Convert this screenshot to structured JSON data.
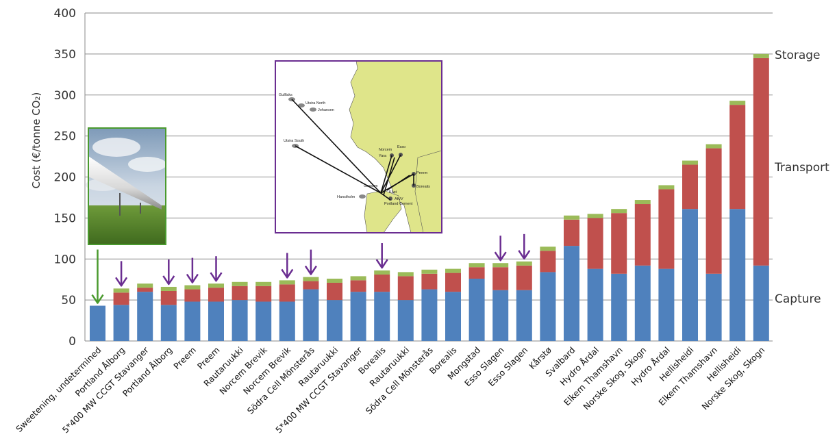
{
  "chart_data": {
    "type": "bar",
    "stacked": true,
    "ylabel": "Cost (€/tonne CO₂)",
    "ylim": [
      0,
      400
    ],
    "yticks": [
      0,
      50,
      100,
      150,
      200,
      250,
      300,
      350,
      400
    ],
    "grid": true,
    "categories": [
      "Sweetening, undetermined",
      "Portland Ålborg",
      "5*400 MW CCGT Stavanger",
      "Portland Ålborg",
      "Preem",
      "Preem",
      "Rautaruukki",
      "Norcem Brevik",
      "Norcem Brevik",
      "Södra Cell Mönsterås",
      "Rautaruukki",
      "5*400 MW CCGT Stavanger",
      "Borealis",
      "Rautaruukki",
      "Södra Cell Mönsterås",
      "Borealis",
      "Mongstad",
      "Esso Slagen",
      "Esso Slagen",
      "Kårstø",
      "Svalbard",
      "Hydro Årdal",
      "Elkem Thamshavn",
      "Norske Skog, Skogn",
      "Hydro Årdal",
      "Hellisheidi",
      "Elkem Thamshavn",
      "Hellisheidi",
      "Norske Skog, Skogn"
    ],
    "series": [
      {
        "name": "Capture",
        "color": "#4f81bd",
        "values": [
          43,
          44,
          60,
          44,
          48,
          48,
          50,
          48,
          48,
          63,
          50,
          60,
          60,
          50,
          63,
          60,
          76,
          62,
          62,
          84,
          116,
          88,
          82,
          92,
          88,
          161,
          82,
          161,
          92
        ]
      },
      {
        "name": "Transport",
        "color": "#c0504d",
        "values": [
          0,
          15,
          5,
          17,
          15,
          17,
          17,
          19,
          21,
          10,
          21,
          14,
          21,
          29,
          19,
          23,
          14,
          28,
          30,
          26,
          32,
          62,
          74,
          75,
          97,
          54,
          153,
          127,
          253
        ]
      },
      {
        "name": "Storage",
        "color": "#9bbb59",
        "values": [
          0,
          5,
          5,
          5,
          5,
          5,
          5,
          5,
          5,
          5,
          5,
          5,
          5,
          5,
          5,
          5,
          5,
          5,
          5,
          5,
          5,
          5,
          5,
          5,
          5,
          5,
          5,
          5,
          5
        ]
      }
    ],
    "highlight_arrows": [
      0,
      1,
      3,
      4,
      5,
      8,
      9,
      12,
      17,
      18
    ],
    "highlight_arrow_colors": {
      "first": "#4a9a2e",
      "other": "#6a2d91"
    }
  },
  "inset_map": {
    "labels": [
      "Gullfaks",
      "Utsira North",
      "Johansen",
      "Utsira South",
      "Norcem",
      "Yara",
      "Esso",
      "Preem",
      "Borealis",
      "Gassum",
      "Hanstholm",
      "Portland Cement",
      "AK/V",
      "Kåst"
    ]
  }
}
